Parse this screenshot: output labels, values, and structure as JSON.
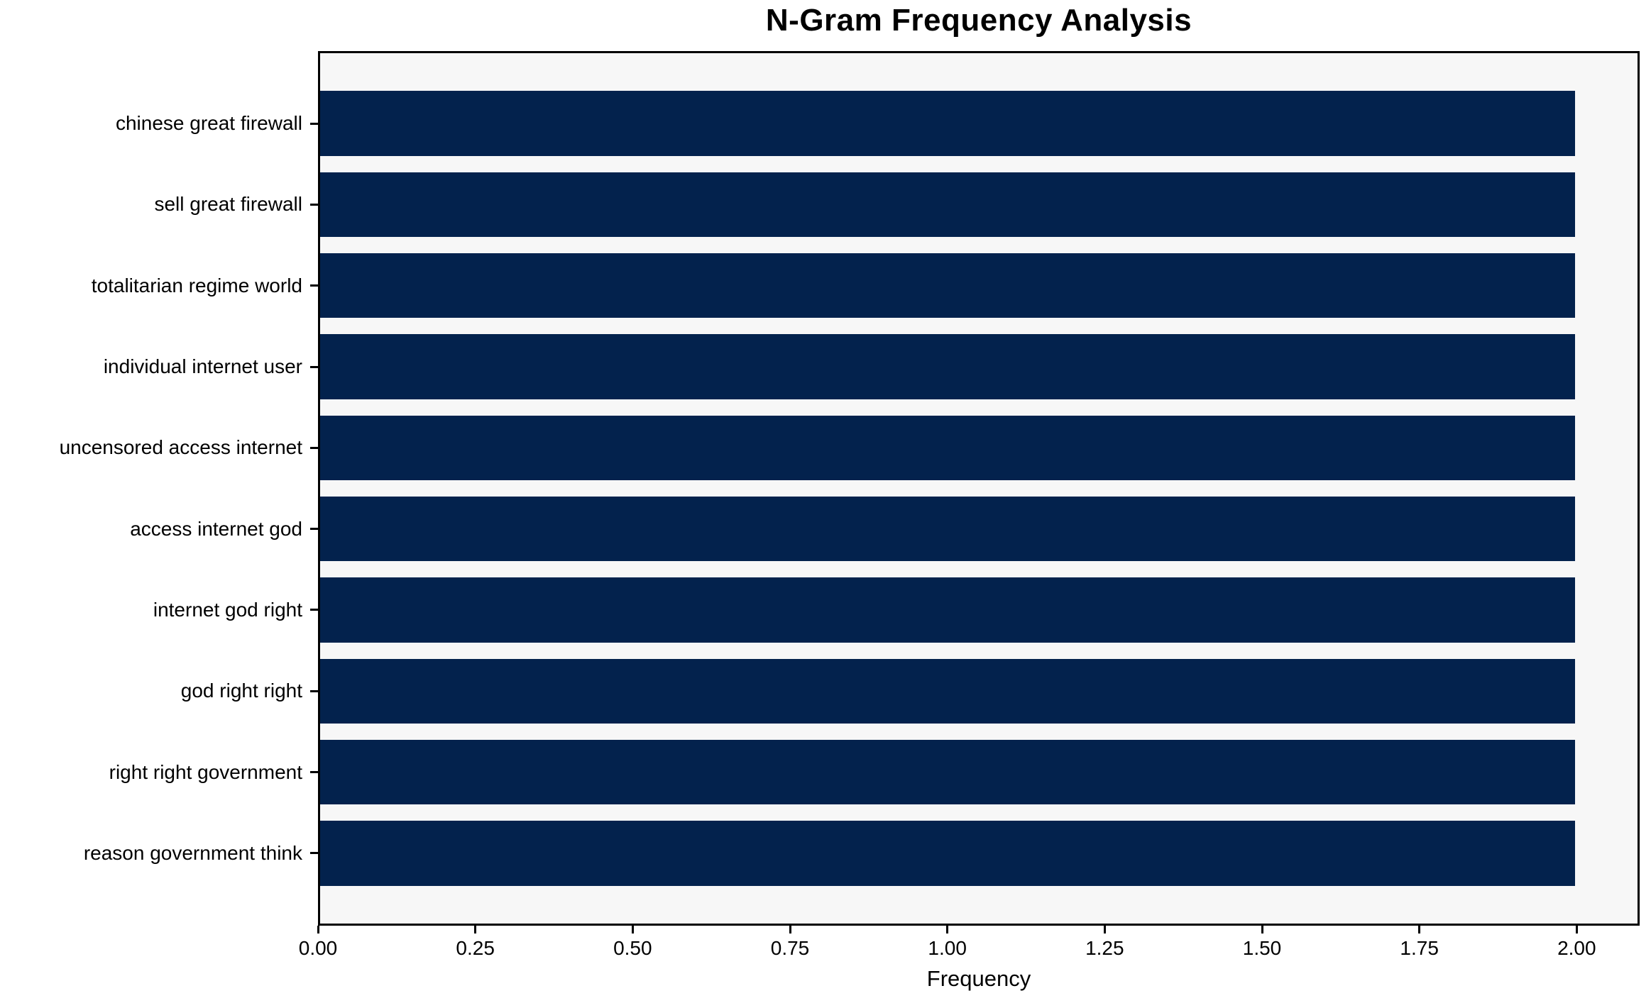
{
  "chart_data": {
    "type": "bar",
    "orientation": "horizontal",
    "title": "N-Gram Frequency Analysis",
    "categories": [
      "chinese great firewall",
      "sell great firewall",
      "totalitarian regime world",
      "individual internet user",
      "uncensored access internet",
      "access internet god",
      "internet god right",
      "god right right",
      "right right government",
      "reason government think"
    ],
    "values": [
      2,
      2,
      2,
      2,
      2,
      2,
      2,
      2,
      2,
      2
    ],
    "xlabel": "Frequency",
    "ylabel": "",
    "xlim": [
      0,
      2.1
    ],
    "xtick_values": [
      0,
      0.25,
      0.5,
      0.75,
      1.0,
      1.25,
      1.5,
      1.75,
      2.0
    ],
    "xtick_labels": [
      "0.00",
      "0.25",
      "0.50",
      "0.75",
      "1.00",
      "1.25",
      "1.50",
      "1.75",
      "2.00"
    ],
    "grid": false,
    "legend": "none",
    "bar_height_fraction": 0.8
  },
  "colors": {
    "bar": "#03224d",
    "plot_bg": "#f7f7f7",
    "figure_bg": "#ffffff",
    "spine": "#000000",
    "text": "#000000"
  }
}
